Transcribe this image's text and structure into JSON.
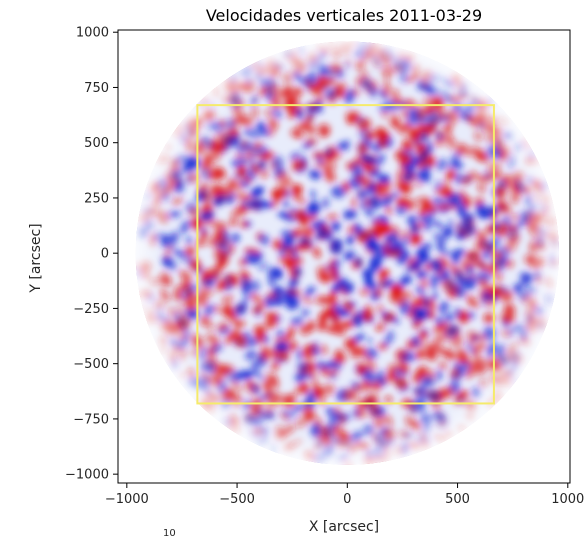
{
  "chart_data": {
    "type": "heatmap",
    "title": "Velocidades verticales 2011-03-29",
    "xlabel": "X [arcsec]",
    "ylabel": "Y [arcsec]",
    "xlim": [
      -1040,
      1010
    ],
    "ylim": [
      -1040,
      1010
    ],
    "x_ticks": [
      -1000,
      -500,
      0,
      500,
      1000
    ],
    "x_tick_labels": [
      "−1000",
      "−500",
      "0",
      "500",
      "1000"
    ],
    "y_ticks": [
      1000,
      750,
      500,
      250,
      0,
      -250,
      -500,
      -750,
      -1000
    ],
    "y_tick_labels": [
      "1000",
      "750",
      "500",
      "250",
      "0",
      "−250",
      "−500",
      "−750",
      "−1000"
    ],
    "solar_disk": {
      "center": [
        0,
        0
      ],
      "radius_arcsec": 960
    },
    "region_box": {
      "x": [
        -680,
        665
      ],
      "y": [
        -680,
        670
      ],
      "color": "#f5eb6b"
    },
    "colormap": "bwr",
    "colors": {
      "positive": "#dd1111",
      "negative": "#1020d0",
      "zero": "#ffffff"
    },
    "partial_text": "10"
  }
}
